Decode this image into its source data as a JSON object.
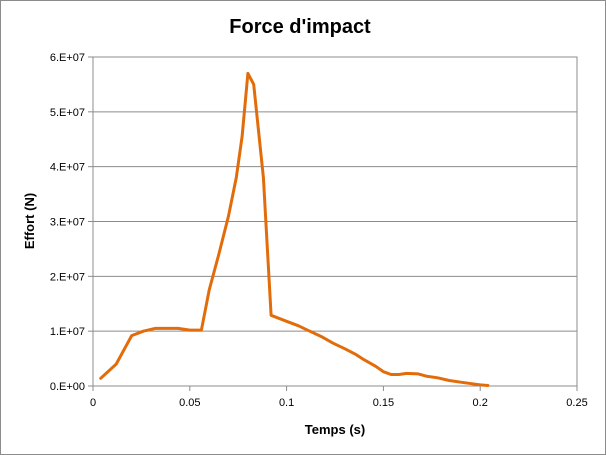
{
  "chart_data": {
    "type": "line",
    "title": "Force d'impact",
    "xlabel": "Temps (s)",
    "ylabel": "Effort (N)",
    "xlim": [
      0,
      0.25
    ],
    "ylim": [
      0,
      60000000
    ],
    "x_ticks": [
      0,
      0.05,
      0.1,
      0.15,
      0.2,
      0.25
    ],
    "x_tick_labels": [
      "0",
      "0.05",
      "0.1",
      "0.15",
      "0.2",
      "0.25"
    ],
    "y_ticks": [
      0,
      10000000,
      20000000,
      30000000,
      40000000,
      50000000,
      60000000
    ],
    "y_tick_labels": [
      "0.E+00",
      "1.E+07",
      "2.E+07",
      "3.E+07",
      "4.E+07",
      "5.E+07",
      "6.E+07"
    ],
    "grid": "horizontal",
    "legend": "none",
    "line_color": "#e36c0a",
    "series": [
      {
        "x": [
          0.004,
          0.012,
          0.02,
          0.026,
          0.032,
          0.038,
          0.044,
          0.05,
          0.056,
          0.06,
          0.065,
          0.07,
          0.074,
          0.077,
          0.08,
          0.083,
          0.088,
          0.092,
          0.1,
          0.106,
          0.112,
          0.118,
          0.124,
          0.13,
          0.136,
          0.14,
          0.146,
          0.15,
          0.154,
          0.158,
          0.162,
          0.168,
          0.172,
          0.178,
          0.184,
          0.19,
          0.196,
          0.2,
          0.204
        ],
        "y": [
          1400000,
          4000000,
          9200000,
          10000000,
          10500000,
          10500000,
          10500000,
          10200000,
          10200000,
          17500000,
          24000000,
          31000000,
          38000000,
          45500000,
          57000000,
          55000000,
          38000000,
          12900000,
          11800000,
          11000000,
          10000000,
          9000000,
          7800000,
          6800000,
          5700000,
          4800000,
          3600000,
          2600000,
          2100000,
          2100000,
          2300000,
          2200000,
          1800000,
          1500000,
          1000000,
          700000,
          400000,
          200000,
          100000
        ]
      }
    ]
  }
}
